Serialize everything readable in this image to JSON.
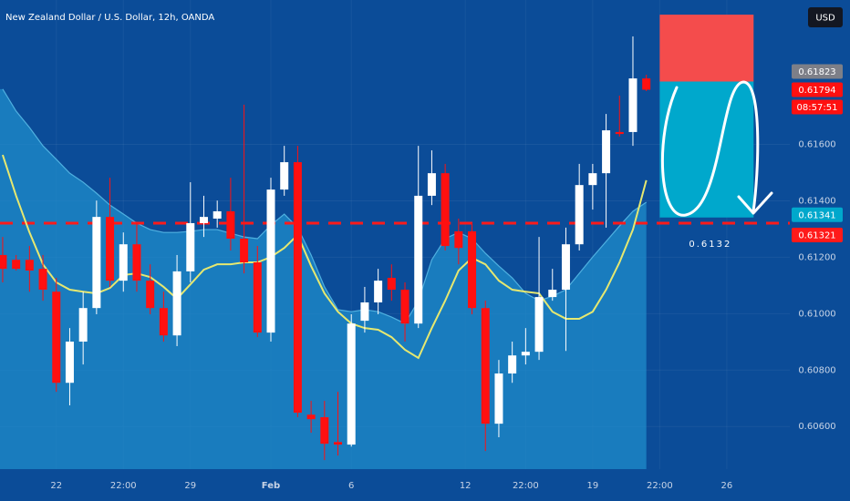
{
  "chart_data": {
    "type": "candlestick",
    "title": "New Zealand Dollar / U.S. Dollar, 12h, OANDA",
    "currency": "USD",
    "background": "#0b4c98",
    "grid": true,
    "xlim": [
      -0.2,
      58.7
    ],
    "ylim": [
      0.60449,
      0.62112
    ],
    "xticks": [
      {
        "value": 4,
        "label": "22"
      },
      {
        "value": 9,
        "label": "22:00"
      },
      {
        "value": 14,
        "label": "29"
      },
      {
        "value": 20,
        "label": "Feb"
      },
      {
        "value": 26,
        "label": "6"
      },
      {
        "value": 34.5,
        "label": "12"
      },
      {
        "value": 39,
        "label": "22:00"
      },
      {
        "value": 44,
        "label": "19"
      },
      {
        "value": 49,
        "label": "22:00"
      },
      {
        "value": 54,
        "label": "26"
      }
    ],
    "yticks": [
      {
        "value": 0.606,
        "label": "0.60600"
      },
      {
        "value": 0.608,
        "label": "0.60800"
      },
      {
        "value": 0.61,
        "label": "0.61000"
      },
      {
        "value": 0.612,
        "label": "0.61200"
      },
      {
        "value": 0.614,
        "label": "0.61400"
      },
      {
        "value": 0.616,
        "label": "0.61600"
      }
    ],
    "up_color": "#ffffff",
    "down_color": "#ff1010",
    "ohlc": {
      "open": [
        0.61208,
        0.61191,
        0.61191,
        0.61159,
        0.61078,
        0.60755,
        0.60901,
        0.6102,
        0.61343,
        0.61117,
        0.61246,
        0.61117,
        0.6102,
        0.60923,
        0.6115,
        0.61321,
        0.61337,
        0.61363,
        0.61266,
        0.61182,
        0.60933,
        0.6144,
        0.61537,
        0.60642,
        0.60633,
        0.60545,
        0.60536,
        0.60975,
        0.6104,
        0.61127,
        0.61085,
        0.60965,
        0.61418,
        0.61498,
        0.61292,
        0.61292,
        0.6102,
        0.6061,
        0.60788,
        0.60852,
        0.60865,
        0.61059,
        0.61085,
        0.61246,
        0.61456,
        0.61498,
        0.61644,
        0.61644,
        0.61834
      ],
      "high": [
        0.61272,
        0.61208,
        0.6124,
        0.61208,
        0.61127,
        0.60949,
        0.61078,
        0.61401,
        0.61482,
        0.61288,
        0.61321,
        0.61175,
        0.61078,
        0.61208,
        0.61466,
        0.61418,
        0.61401,
        0.61482,
        0.61741,
        0.6124,
        0.61482,
        0.61595,
        0.61595,
        0.60691,
        0.60691,
        0.60723,
        0.60998,
        0.61095,
        0.61159,
        0.61175,
        0.61111,
        0.61595,
        0.61579,
        0.61531,
        0.61337,
        0.61321,
        0.61046,
        0.60836,
        0.60901,
        0.60949,
        0.61272,
        0.61159,
        0.61305,
        0.61531,
        0.61531,
        0.61708,
        0.61773,
        0.61983,
        0.61847
      ],
      "low": [
        0.61111,
        0.61153,
        0.61078,
        0.61046,
        0.60723,
        0.60675,
        0.6082,
        0.60998,
        0.61095,
        0.61078,
        0.61078,
        0.60998,
        0.60901,
        0.60885,
        0.61111,
        0.61272,
        0.61305,
        0.61224,
        0.61143,
        0.60917,
        0.60901,
        0.61418,
        0.60633,
        0.60578,
        0.60481,
        0.60497,
        0.60529,
        0.60933,
        0.60998,
        0.61046,
        0.60901,
        0.60949,
        0.61385,
        0.61224,
        0.61175,
        0.60998,
        0.60513,
        0.60562,
        0.60755,
        0.6082,
        0.60836,
        0.61046,
        0.60868,
        0.61224,
        0.61369,
        0.61305,
        0.61628,
        0.61595,
        0.61789
      ],
      "close": [
        0.61159,
        0.61159,
        0.61153,
        0.61085,
        0.60755,
        0.60901,
        0.6102,
        0.61343,
        0.61117,
        0.61246,
        0.61117,
        0.6102,
        0.60923,
        0.6115,
        0.61321,
        0.61343,
        0.61363,
        0.61266,
        0.61182,
        0.60933,
        0.6144,
        0.61537,
        0.60649,
        0.60626,
        0.60539,
        0.60536,
        0.60965,
        0.6104,
        0.61117,
        0.61085,
        0.60965,
        0.61418,
        0.61498,
        0.6124,
        0.61233,
        0.6102,
        0.6061,
        0.60788,
        0.60852,
        0.60865,
        0.61059,
        0.61085,
        0.61246,
        0.61456,
        0.61498,
        0.6165,
        0.61637,
        0.61834,
        0.61794
      ]
    },
    "envelope": {
      "color": "#1f8ccb",
      "values": [
        0.61796,
        0.61718,
        0.6166,
        0.61595,
        0.61547,
        0.61498,
        0.61466,
        0.61427,
        0.61385,
        0.61353,
        0.61321,
        0.61298,
        0.61288,
        0.61288,
        0.61292,
        0.61298,
        0.61298,
        0.61285,
        0.61272,
        0.61266,
        0.61314,
        0.61353,
        0.61305,
        0.61208,
        0.61095,
        0.61014,
        0.61007,
        0.61014,
        0.61007,
        0.60988,
        0.60965,
        0.61046,
        0.61191,
        0.61266,
        0.61288,
        0.61266,
        0.61214,
        0.61169,
        0.61127,
        0.61072,
        0.61046,
        0.61062,
        0.61085,
        0.61143,
        0.61201,
        0.61256,
        0.61311,
        0.61363,
        0.61395
      ]
    },
    "moving_average": {
      "color": "#e6e870",
      "values": [
        0.61563,
        0.61418,
        0.61288,
        0.61175,
        0.61111,
        0.61085,
        0.61078,
        0.61072,
        0.61091,
        0.61137,
        0.61143,
        0.6113,
        0.61095,
        0.61053,
        0.61104,
        0.61156,
        0.61175,
        0.61175,
        0.61182,
        0.61182,
        0.61201,
        0.61233,
        0.61279,
        0.61169,
        0.61072,
        0.61007,
        0.60965,
        0.60949,
        0.60943,
        0.60917,
        0.60872,
        0.60843,
        0.60949,
        0.61046,
        0.61153,
        0.61198,
        0.61175,
        0.61117,
        0.61085,
        0.61078,
        0.61072,
        0.61007,
        0.60982,
        0.60982,
        0.61007,
        0.61085,
        0.61182,
        0.61298,
        0.61473
      ]
    },
    "hline": {
      "value": 0.61321,
      "color": "#ff1a1a"
    },
    "countdown": "08:57:51",
    "position": {
      "start": 49,
      "end": 56,
      "stop": 0.6206,
      "entry": 0.61823,
      "target": 0.61341,
      "stop_color": "#f44c4c",
      "target_color": "#00a8cc",
      "entry_color": "#7d7f88"
    },
    "annotation": "0.6132"
  }
}
